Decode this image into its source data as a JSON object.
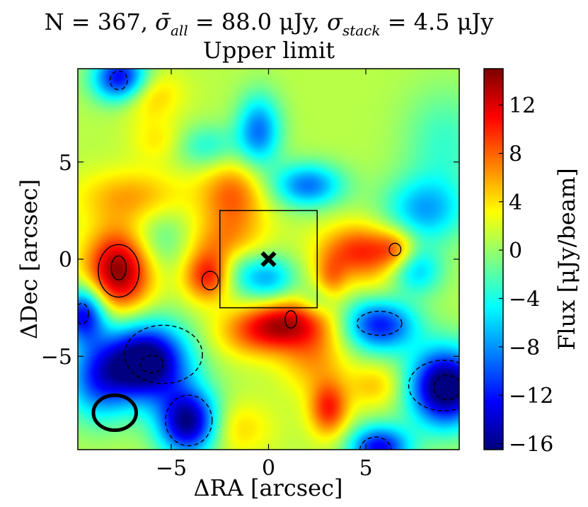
{
  "chart_data": {
    "type": "heatmap",
    "title_line1_prefix": "N = 367, ",
    "title_line1_sigma_all_symbol": "σ̄",
    "title_line1_sigma_all_sub": "all",
    "title_line1_sigma_all_value": " = 88.0 μJy, ",
    "title_line1_sigma_stack_symbol": "σ",
    "title_line1_sigma_stack_sub": "stack",
    "title_line1_sigma_stack_value": " = 4.5 μJy",
    "title_line2": "Upper limit",
    "xlabel": "ΔRA [arcsec]",
    "ylabel": "ΔDec [arcsec]",
    "colorbar_label": "Flux [μJy/beam]",
    "xlim": [
      -9.8,
      9.8
    ],
    "ylim": [
      -9.8,
      9.8
    ],
    "xticks": [
      -5,
      0,
      5
    ],
    "yticks": [
      -5,
      0,
      5
    ],
    "xtick_labels": [
      "−5",
      "0",
      "5"
    ],
    "ytick_labels": [
      "−5",
      "0",
      "5"
    ],
    "colorbar_range": [
      -16.5,
      15
    ],
    "colorbar_ticks": [
      12,
      8,
      4,
      0,
      -4,
      -8,
      -12,
      -16
    ],
    "colorbar_tick_labels": [
      "12",
      "8",
      "4",
      "0",
      "−4",
      "−8",
      "−12",
      "−16"
    ],
    "colormap": "jet",
    "background_level": 1.0,
    "blobs": [
      {
        "x": -7.7,
        "y": -0.6,
        "sx": 1.2,
        "sy": 1.5,
        "a": 14
      },
      {
        "x": -7.0,
        "y": 3.2,
        "sx": 2.0,
        "sy": 1.0,
        "a": 5
      },
      {
        "x": -3.1,
        "y": -0.9,
        "sx": 0.9,
        "sy": 0.9,
        "a": 9
      },
      {
        "x": -1.8,
        "y": 3.3,
        "sx": 1.2,
        "sy": 1.3,
        "a": 7
      },
      {
        "x": -2.3,
        "y": 0.8,
        "sx": 1.5,
        "sy": 1.0,
        "a": 5
      },
      {
        "x": 1.0,
        "y": -3.2,
        "sx": 1.5,
        "sy": 0.9,
        "a": 9
      },
      {
        "x": -0.6,
        "y": -3.8,
        "sx": 1.5,
        "sy": 0.9,
        "a": 6
      },
      {
        "x": 2.3,
        "y": -5.0,
        "sx": 1.2,
        "sy": 1.3,
        "a": 5
      },
      {
        "x": 4.8,
        "y": 0.4,
        "sx": 1.5,
        "sy": 1.0,
        "a": 9
      },
      {
        "x": 6.6,
        "y": 0.5,
        "sx": 0.7,
        "sy": 0.7,
        "a": 5
      },
      {
        "x": 3.2,
        "y": -1.1,
        "sx": 0.6,
        "sy": 0.9,
        "a": 5
      },
      {
        "x": 3.1,
        "y": -7.7,
        "sx": 0.7,
        "sy": 1.0,
        "a": 9
      },
      {
        "x": -6.3,
        "y": 8.5,
        "sx": 1.2,
        "sy": 0.9,
        "a": 5
      },
      {
        "x": -5.6,
        "y": 6.1,
        "sx": 1.0,
        "sy": 0.8,
        "a": 3
      },
      {
        "x": -1.9,
        "y": -8.7,
        "sx": 1.4,
        "sy": 1.0,
        "a": 4
      },
      {
        "x": 6.1,
        "y": -2.5,
        "sx": 1.2,
        "sy": 1.3,
        "a": 4
      },
      {
        "x": 5.5,
        "y": -6.5,
        "sx": 1.0,
        "sy": 0.8,
        "a": 4
      },
      {
        "x": -6.3,
        "y": -5.3,
        "sx": 1.5,
        "sy": 1.4,
        "a": -20
      },
      {
        "x": -8.8,
        "y": -6.2,
        "sx": 1.2,
        "sy": 1.5,
        "a": -10
      },
      {
        "x": 9.1,
        "y": -6.6,
        "sx": 1.3,
        "sy": 1.4,
        "a": -20
      },
      {
        "x": 5.8,
        "y": -3.3,
        "sx": 1.3,
        "sy": 1.0,
        "a": -16
      },
      {
        "x": -4.1,
        "y": -8.4,
        "sx": 1.1,
        "sy": 1.2,
        "a": -18
      },
      {
        "x": -7.6,
        "y": 9.3,
        "sx": 1.0,
        "sy": 0.9,
        "a": -15
      },
      {
        "x": 5.7,
        "y": -9.7,
        "sx": 1.1,
        "sy": 0.8,
        "a": -14
      },
      {
        "x": -0.5,
        "y": 6.6,
        "sx": 0.8,
        "sy": 1.3,
        "a": -10
      },
      {
        "x": 2.0,
        "y": 3.8,
        "sx": 1.3,
        "sy": 0.8,
        "a": -10
      },
      {
        "x": -3.2,
        "y": 5.8,
        "sx": 1.2,
        "sy": 0.8,
        "a": -5
      },
      {
        "x": 0.0,
        "y": -1.0,
        "sx": 1.0,
        "sy": 0.9,
        "a": -8
      },
      {
        "x": -1.6,
        "y": -0.6,
        "sx": 0.8,
        "sy": 0.9,
        "a": -4
      },
      {
        "x": 8.0,
        "y": 2.5,
        "sx": 1.5,
        "sy": 1.2,
        "a": -8
      },
      {
        "x": 7.5,
        "y": -0.6,
        "sx": 1.0,
        "sy": 0.9,
        "a": -8
      },
      {
        "x": -9.5,
        "y": -2.8,
        "sx": 0.8,
        "sy": 1.0,
        "a": -14
      },
      {
        "x": 9.0,
        "y": 6.0,
        "sx": 1.5,
        "sy": 2.0,
        "a": -4
      },
      {
        "x": -5.5,
        "y": 1.0,
        "sx": 1.2,
        "sy": 1.2,
        "a": -4
      },
      {
        "x": 2.6,
        "y": -2.1,
        "sx": 0.7,
        "sy": 0.6,
        "a": -4
      }
    ],
    "contours_positive": [
      {
        "x": -7.7,
        "y": -0.6,
        "rx": 1.05,
        "ry": 1.35
      },
      {
        "x": -7.7,
        "y": -0.45,
        "rx": 0.38,
        "ry": 0.62
      },
      {
        "x": -3.0,
        "y": -1.1,
        "rx": 0.42,
        "ry": 0.48
      },
      {
        "x": 1.15,
        "y": -3.1,
        "rx": 0.3,
        "ry": 0.45
      },
      {
        "x": 6.5,
        "y": 0.5,
        "rx": 0.3,
        "ry": 0.32
      }
    ],
    "contours_negative": [
      {
        "x": -7.7,
        "y": 9.2,
        "rx": 0.45,
        "ry": 0.48
      },
      {
        "x": -5.4,
        "y": -4.9,
        "rx": 2.0,
        "ry": 1.5
      },
      {
        "x": -6.0,
        "y": -5.4,
        "rx": 0.58,
        "ry": 0.45
      },
      {
        "x": -9.6,
        "y": -2.8,
        "rx": 0.35,
        "ry": 0.52
      },
      {
        "x": 5.7,
        "y": -3.3,
        "rx": 1.15,
        "ry": 0.62
      },
      {
        "x": 9.0,
        "y": -6.5,
        "rx": 1.8,
        "ry": 1.3
      },
      {
        "x": 9.2,
        "y": -6.6,
        "rx": 0.72,
        "ry": 0.62
      },
      {
        "x": -4.1,
        "y": -8.3,
        "rx": 1.2,
        "ry": 1.3
      },
      {
        "x": 5.5,
        "y": -9.9,
        "rx": 0.82,
        "ry": 0.75
      }
    ],
    "box": {
      "x0": -2.5,
      "x1": 2.5,
      "y0": -2.5,
      "y1": 2.5
    },
    "marker": {
      "x": 0,
      "y": 0,
      "symbol": "✖"
    },
    "beam": {
      "x": -7.9,
      "y": -7.9,
      "rx": 1.1,
      "ry": 0.9
    }
  }
}
